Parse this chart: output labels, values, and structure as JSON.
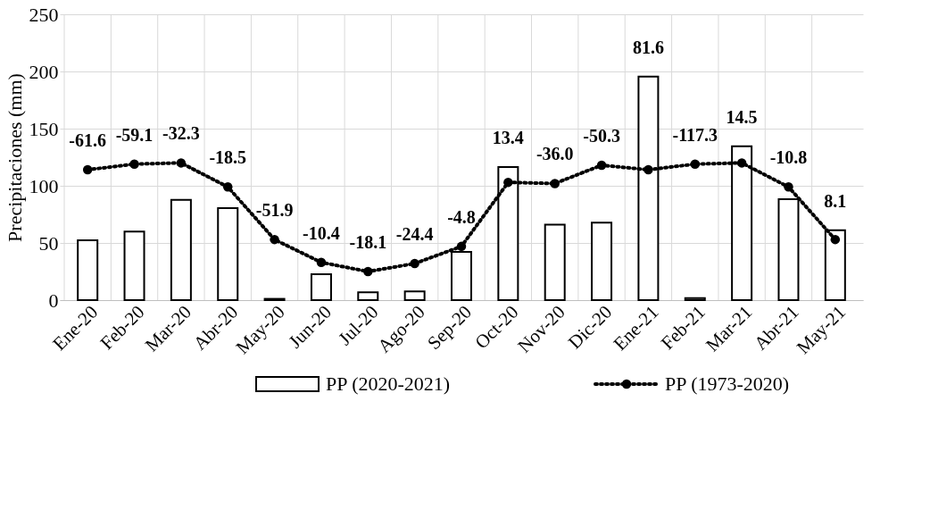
{
  "chart_data": {
    "type": "bar",
    "ylabel": "Precipitaciones (mm)",
    "categories": [
      "Ene-20",
      "Feb-20",
      "Mar-20",
      "Abr-20",
      "May-20",
      "Jun-20",
      "Jul-20",
      "Ago-20",
      "Sep-20",
      "Oct-20",
      "Nov-20",
      "Dic-20",
      "Ene-21",
      "Feb-21",
      "Mar-21",
      "Abr-21",
      "May-21"
    ],
    "series": [
      {
        "name": "PP (2020-2021)",
        "color": "#ffffff",
        "values": [
          52.4,
          59.9,
          87.7,
          80.5,
          1.1,
          22.6,
          6.9,
          7.6,
          42.2,
          116.4,
          66.0,
          67.7,
          195.6,
          1.7,
          134.5,
          88.2,
          61.1
        ]
      },
      {
        "name": "PP (1973-2020)",
        "type": "line",
        "color": "#000000",
        "marker": "circle",
        "line_style": "dotted",
        "values": [
          114,
          119,
          120,
          99,
          53,
          33,
          25,
          32,
          47,
          103,
          102,
          118,
          114,
          119,
          120,
          99,
          53
        ]
      }
    ],
    "annotations": [
      "-61.6",
      "-59.1",
      "-32.3",
      "-18.5",
      "-51.9",
      "-10.4",
      "-18.1",
      "-24.4",
      "-4.8",
      "13.4",
      "-36.0",
      "-50.3",
      "81.6",
      "-117.3",
      "14.5",
      "-10.8",
      "8.1"
    ],
    "ylim": [
      0,
      250
    ],
    "yticks": [
      0,
      50,
      100,
      150,
      200,
      250
    ],
    "grid": true,
    "legend": "bottom"
  }
}
